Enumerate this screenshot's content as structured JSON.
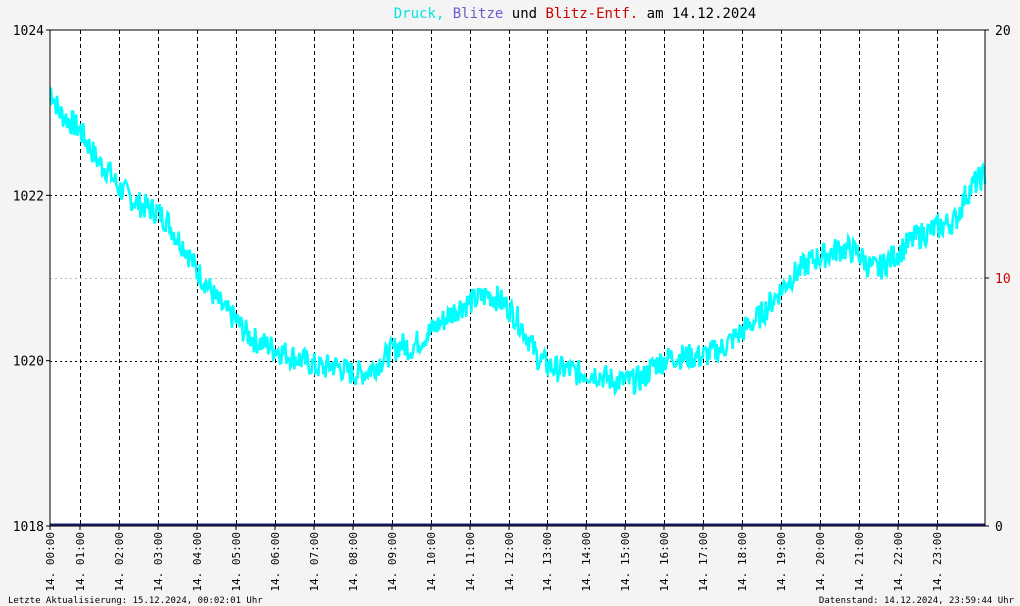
{
  "title_parts": [
    {
      "text": "Druck,",
      "color": "#00e5e5"
    },
    {
      "text": "Blitze",
      "color": "#6a5acd"
    },
    {
      "text": "und",
      "color": "#000000"
    },
    {
      "text": "Blitz-Entf.",
      "color": "#cc0000"
    },
    {
      "text": "am 14.12.2024",
      "color": "#000000"
    }
  ],
  "footer": {
    "left": "Letzte Aktualisierung: 15.12.2024, 00:02:01 Uhr",
    "right": "Datenstand: 14.12.2024, 23:59:44 Uhr"
  },
  "chart_data": {
    "type": "line",
    "title": "Druck, Blitze und Blitz-Entf. am 14.12.2024",
    "x_ticks": [
      "14. 00:00",
      "14. 01:00",
      "14. 02:00",
      "14. 03:00",
      "14. 04:00",
      "14. 05:00",
      "14. 06:00",
      "14. 07:00",
      "14. 08:00",
      "14. 09:00",
      "14. 10:00",
      "14. 11:00",
      "14. 12:00",
      "14. 13:00",
      "14. 14:00",
      "14. 15:00",
      "14. 16:00",
      "14. 17:00",
      "14. 18:00",
      "14. 19:00",
      "14. 20:00",
      "14. 21:00",
      "14. 22:00",
      "14. 23:00"
    ],
    "xlim_hours": [
      0,
      24
    ],
    "left_axis": {
      "ylim": [
        1018,
        1024
      ],
      "ticks": [
        "1018",
        "1020",
        "1022",
        "1024"
      ]
    },
    "right_axis": {
      "ylim": [
        0,
        20
      ],
      "ticks": [
        "0",
        "10",
        "20"
      ],
      "color": "#cc0000"
    },
    "grid": true,
    "series": [
      {
        "name": "Druck",
        "color": "#00ffff",
        "axis": "left",
        "x_hours": [
          0,
          0.25,
          0.5,
          0.75,
          1,
          1.25,
          1.5,
          1.75,
          2,
          2.25,
          2.5,
          2.75,
          3,
          3.25,
          3.5,
          3.75,
          4,
          4.25,
          4.5,
          4.75,
          5,
          5.25,
          5.5,
          5.75,
          6,
          6.25,
          6.5,
          6.75,
          7,
          7.25,
          7.5,
          7.75,
          8,
          8.25,
          8.5,
          8.75,
          9,
          9.25,
          9.5,
          9.75,
          10,
          10.25,
          10.5,
          10.75,
          11,
          11.25,
          11.5,
          11.75,
          12,
          12.25,
          12.5,
          12.75,
          13,
          13.25,
          13.5,
          13.75,
          14,
          14.25,
          14.5,
          14.75,
          15,
          15.25,
          15.5,
          15.75,
          16,
          16.25,
          16.5,
          16.75,
          17,
          17.25,
          17.5,
          17.75,
          18,
          18.25,
          18.5,
          18.75,
          19,
          19.25,
          19.5,
          19.75,
          20,
          20.25,
          20.5,
          20.75,
          21,
          21.25,
          21.5,
          21.75,
          22,
          22.25,
          22.5,
          22.75,
          23,
          23.25,
          23.5,
          23.75,
          24
        ],
        "values": [
          1023.3,
          1023.0,
          1022.9,
          1022.8,
          1022.6,
          1022.4,
          1022.3,
          1022.1,
          1022.0,
          1021.9,
          1021.85,
          1021.8,
          1021.7,
          1021.5,
          1021.35,
          1021.1,
          1020.95,
          1020.75,
          1020.6,
          1020.5,
          1020.35,
          1020.25,
          1020.2,
          1020.15,
          1020.1,
          1020.05,
          1020.0,
          1019.95,
          1019.9,
          1019.95,
          1019.9,
          1019.85,
          1019.85,
          1019.9,
          1020.0,
          1020.1,
          1020.2,
          1020.15,
          1020.25,
          1020.35,
          1020.45,
          1020.55,
          1020.65,
          1020.7,
          1020.75,
          1020.8,
          1020.75,
          1020.65,
          1020.5,
          1020.3,
          1020.05,
          1019.95,
          1019.9,
          1019.9,
          1019.85,
          1019.85,
          1019.85,
          1019.8,
          1019.75,
          1019.75,
          1019.75,
          1019.8,
          1019.95,
          1020.0,
          1020.05,
          1020.05,
          1020.05,
          1020.05,
          1020.1,
          1020.15,
          1020.25,
          1020.35,
          1020.45,
          1020.55,
          1020.7,
          1020.85,
          1021.0,
          1021.1,
          1021.2,
          1021.25,
          1021.3,
          1021.35,
          1021.35,
          1021.3,
          1021.15,
          1021.1,
          1021.2,
          1021.3,
          1021.4,
          1021.5,
          1021.55,
          1021.6,
          1021.65,
          1021.7,
          1022.0,
          1022.15,
          1022.25
        ]
      },
      {
        "name": "Blitze",
        "color": "#191970",
        "axis": "right",
        "x_hours": [
          0,
          24
        ],
        "values": [
          0,
          0
        ]
      }
    ]
  }
}
